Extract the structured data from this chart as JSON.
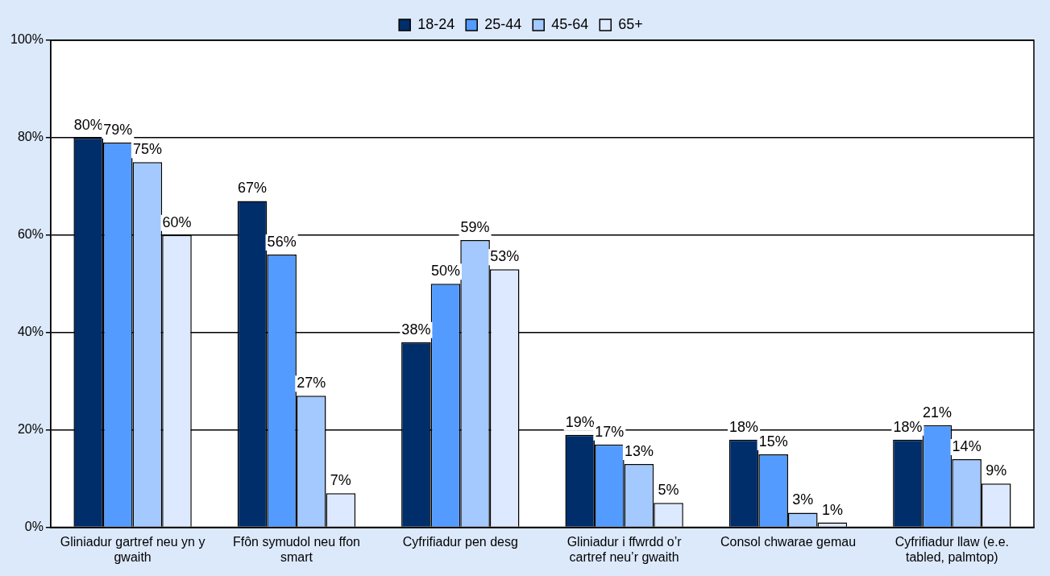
{
  "chart_data": {
    "type": "bar",
    "categories": [
      "Gliniadur gartref neu yn y gwaith",
      "Ffôn symudol neu ffon smart",
      "Cyfrifiadur pen desg",
      "Gliniadur i ffwrdd o’r cartref neu’r gwaith",
      "Consol chwarae gemau",
      "Cyfrifiadur llaw (e.e. tabled, palmtop)"
    ],
    "series": [
      {
        "name": "18-24",
        "color": "#002e6b",
        "values": [
          80,
          67,
          38,
          19,
          18,
          18
        ],
        "value_labels": [
          "80%",
          "67%",
          "38%",
          "19%",
          "18%",
          "18%"
        ]
      },
      {
        "name": "25-44",
        "color": "#539bff",
        "values": [
          79,
          56,
          50,
          17,
          15,
          21
        ],
        "value_labels": [
          "79%",
          "56%",
          "50%",
          "17%",
          "15%",
          "21%"
        ]
      },
      {
        "name": "45-64",
        "color": "#a3c9ff",
        "values": [
          75,
          27,
          59,
          13,
          3,
          14
        ],
        "value_labels": [
          "75%",
          "27%",
          "59%",
          "13%",
          "3%",
          "14%"
        ]
      },
      {
        "name": "65+",
        "color": "#dde9fe",
        "values": [
          60,
          7,
          53,
          5,
          1,
          9
        ],
        "value_labels": [
          "60%",
          "7%",
          "53%",
          "5%",
          "1%",
          "9%"
        ]
      }
    ],
    "ylim": [
      0,
      100
    ],
    "yticks": [
      {
        "value": 0,
        "label": "0%"
      },
      {
        "value": 20,
        "label": "20%"
      },
      {
        "value": 40,
        "label": "40%"
      },
      {
        "value": 60,
        "label": "60%"
      },
      {
        "value": 80,
        "label": "80%"
      },
      {
        "value": 100,
        "label": "100%"
      }
    ],
    "grid": "y",
    "legend": "top"
  }
}
